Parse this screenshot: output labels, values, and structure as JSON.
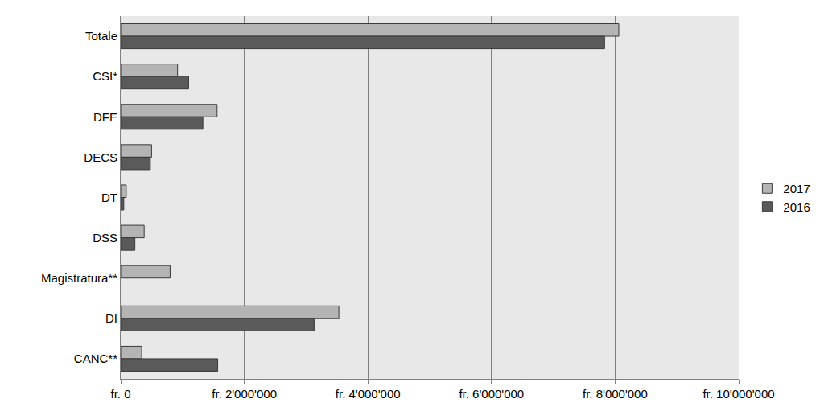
{
  "chart_data": {
    "type": "bar",
    "orientation": "horizontal",
    "categories": [
      "Totale",
      "CSI*",
      "DFE",
      "DECS",
      "DT",
      "DSS",
      "Magistratura**",
      "DI",
      "CANC**"
    ],
    "series": [
      {
        "name": "2017",
        "color": "#b4b4b4",
        "values": [
          8060000,
          920000,
          1560000,
          500000,
          90000,
          380000,
          800000,
          3530000,
          340000
        ]
      },
      {
        "name": "2016",
        "color": "#5a5a5a",
        "values": [
          7830000,
          1100000,
          1330000,
          480000,
          50000,
          230000,
          null,
          3130000,
          1570000
        ]
      }
    ],
    "xlim": [
      0,
      10000000
    ],
    "xticks": [
      {
        "value": 0,
        "label": "fr. 0"
      },
      {
        "value": 2000000,
        "label": "fr. 2'000'000"
      },
      {
        "value": 4000000,
        "label": "fr. 4'000'000"
      },
      {
        "value": 6000000,
        "label": "fr. 6'000'000"
      },
      {
        "value": 8000000,
        "label": "fr. 8'000'000"
      },
      {
        "value": 10000000,
        "label": "fr. 10'000'000"
      }
    ],
    "grid": true,
    "legend": "right"
  }
}
